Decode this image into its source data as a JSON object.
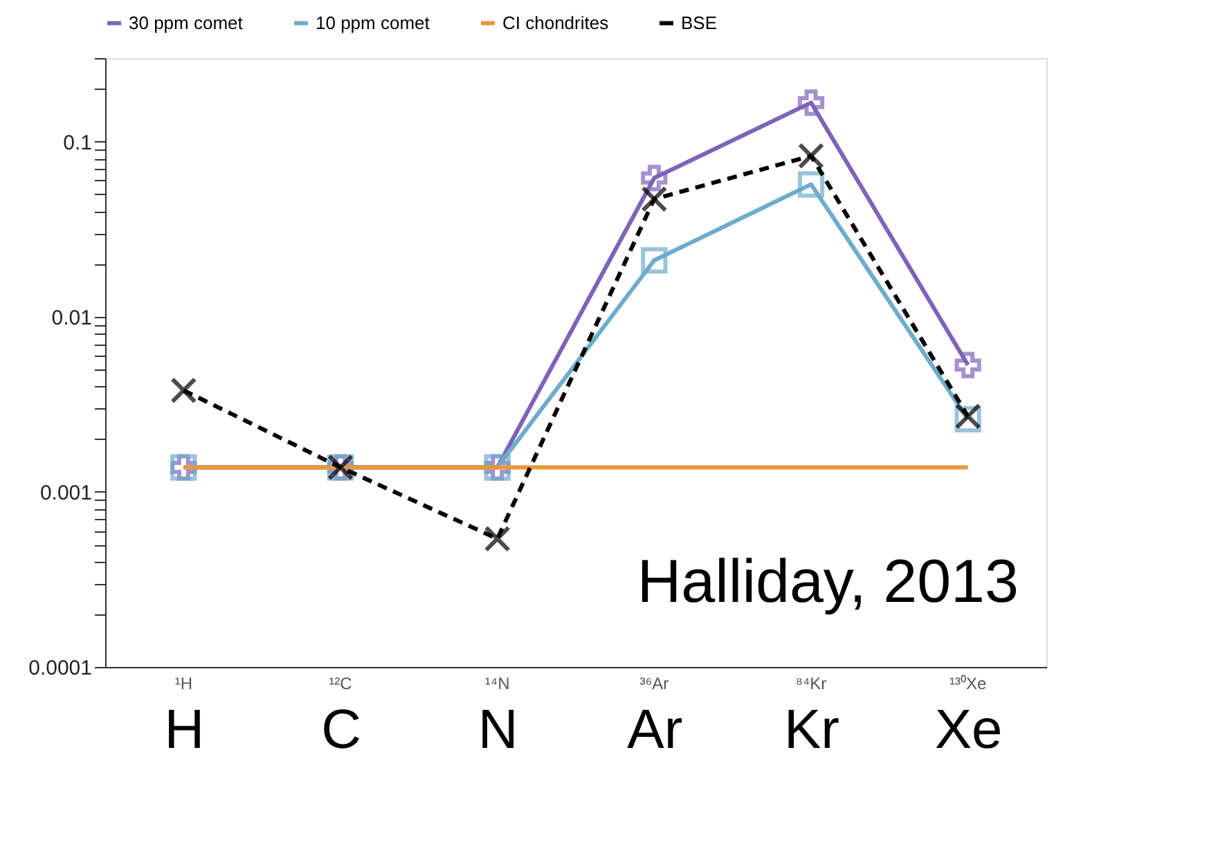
{
  "chart_data": {
    "type": "line",
    "categories": [
      "H",
      "C",
      "N",
      "Ar",
      "Kr",
      "Xe"
    ],
    "series": [
      {
        "name": "30 ppm comet",
        "color": "#7e63b8",
        "marker": "cross",
        "line_style": "solid",
        "values": [
          0.00138,
          0.00138,
          0.00138,
          0.062,
          0.167,
          0.0053
        ]
      },
      {
        "name": "10 ppm comet",
        "color": "#6eaccc",
        "marker": "square",
        "line_style": "solid",
        "values": [
          0.00138,
          0.00138,
          0.00138,
          0.021,
          0.057,
          0.0026
        ]
      },
      {
        "name": "CI chondrites",
        "color": "#e8973a",
        "marker": "none",
        "line_style": "solid",
        "values": [
          0.00138,
          0.00138,
          0.00138,
          0.00138,
          0.00138,
          0.00138
        ]
      },
      {
        "name": "BSE",
        "color": "#000000",
        "marker": "x",
        "line_style": "dashed",
        "values": [
          0.0038,
          0.00138,
          0.00054,
          0.047,
          0.083,
          0.0027
        ]
      }
    ],
    "log": true,
    "ylim": [
      0.0001,
      0.3
    ],
    "yticks": [
      {
        "value": 0.0001,
        "label": "0.0001"
      },
      {
        "value": 0.0002,
        "label": null
      },
      {
        "value": 0.0003,
        "label": null
      },
      {
        "value": 0.0004,
        "label": null
      },
      {
        "value": 0.0005,
        "label": null
      },
      {
        "value": 0.0006,
        "label": null
      },
      {
        "value": 0.0007,
        "label": null
      },
      {
        "value": 0.0008,
        "label": null
      },
      {
        "value": 0.0009,
        "label": null
      },
      0.001,
      {
        "value": 0.002,
        "label": null
      },
      {
        "value": 0.003,
        "label": null
      },
      {
        "value": 0.004,
        "label": null
      },
      {
        "value": 0.005,
        "label": null
      },
      {
        "value": 0.006,
        "label": null
      },
      {
        "value": 0.007,
        "label": null
      },
      {
        "value": 0.008,
        "label": null
      },
      {
        "value": 0.009,
        "label": null
      },
      0.01,
      {
        "value": 0.02,
        "label": null
      },
      {
        "value": 0.03,
        "label": null
      },
      {
        "value": 0.04,
        "label": null
      },
      {
        "value": 0.05,
        "label": null
      },
      {
        "value": 0.06,
        "label": null
      },
      {
        "value": 0.07,
        "label": null
      },
      {
        "value": 0.08,
        "label": null
      },
      {
        "value": 0.09,
        "label": null
      },
      0.1,
      {
        "value": 0.2,
        "label": null
      },
      {
        "value": 0.3,
        "label": null
      }
    ],
    "grid": false,
    "legend": "top",
    "annotations": [
      "Halliday, 2013",
      "¹H",
      "¹²C",
      "¹⁴N",
      "³⁶Ar",
      "⁸⁴Kr",
      "¹³⁰Xe"
    ]
  }
}
